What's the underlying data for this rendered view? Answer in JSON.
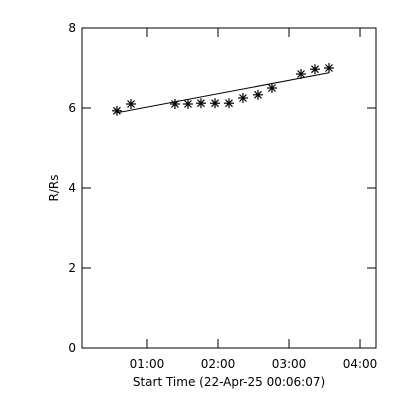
{
  "chart_data": {
    "type": "scatter",
    "xlabel": "Start Time (22-Apr-25 00:06:07)",
    "ylabel": "R/Rs",
    "xlim": [
      0.085,
      4.225
    ],
    "ylim": [
      0,
      8
    ],
    "xticks": [
      {
        "value": 1,
        "label": "01:00"
      },
      {
        "value": 2,
        "label": "02:00"
      },
      {
        "value": 3,
        "label": "03:00"
      },
      {
        "value": 4,
        "label": "04:00"
      }
    ],
    "yticks": [
      0,
      2,
      4,
      6,
      8
    ],
    "color": "#000000",
    "series": [
      {
        "marker": "asterisk",
        "x": [
          0.577,
          0.775,
          1.394,
          1.577,
          1.76,
          1.958,
          2.155,
          2.352,
          2.563,
          2.76,
          3.169,
          3.366,
          3.563
        ],
        "values": [
          5.93,
          6.1,
          6.1,
          6.1,
          6.12,
          6.12,
          6.12,
          6.25,
          6.33,
          6.5,
          6.85,
          6.97,
          7.0
        ]
      },
      {
        "marker": "line",
        "x": [
          0.577,
          3.563
        ],
        "values": [
          5.88,
          6.88
        ]
      }
    ]
  }
}
